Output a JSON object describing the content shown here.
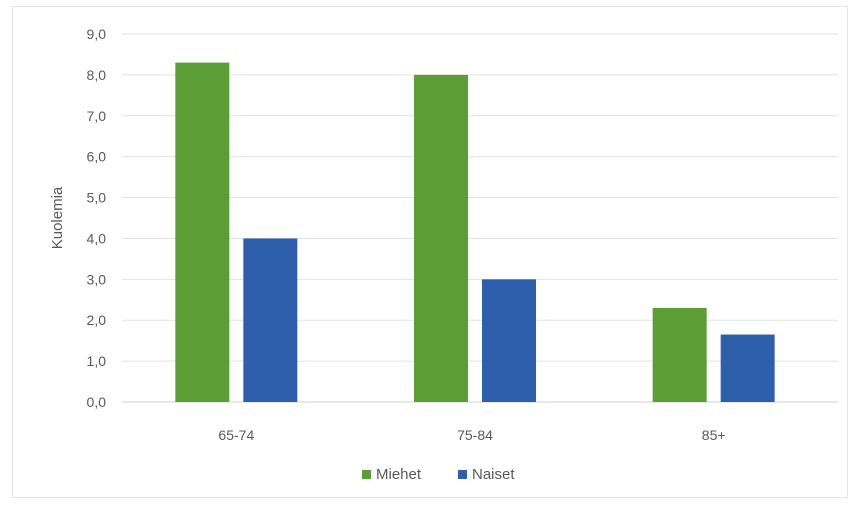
{
  "chart_data": {
    "type": "bar",
    "categories": [
      "65-74",
      "75-84",
      "85+"
    ],
    "series": [
      {
        "name": "Miehet",
        "color": "#5a9e35",
        "values": [
          8.3,
          8.0,
          2.3
        ]
      },
      {
        "name": "Naiset",
        "color": "#2e5fac",
        "values": [
          4.0,
          3.0,
          1.65
        ]
      }
    ],
    "title": "",
    "xlabel": "",
    "ylabel": "Kuolemia",
    "ylim": [
      0,
      9
    ],
    "yticks": [
      "0,0",
      "1,0",
      "2,0",
      "3,0",
      "4,0",
      "5,0",
      "6,0",
      "7,0",
      "8,0",
      "9,0"
    ],
    "grid": true,
    "legend_position": "bottom"
  }
}
